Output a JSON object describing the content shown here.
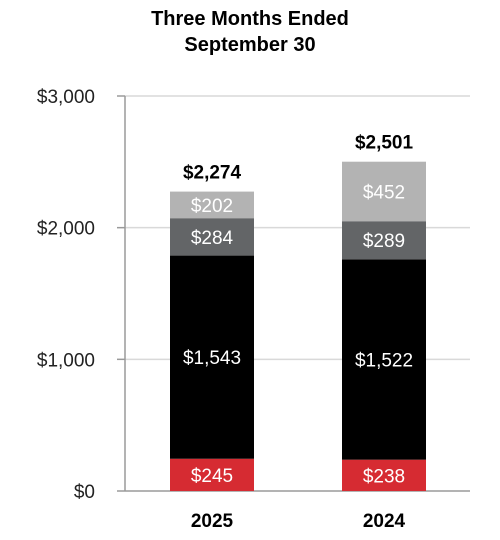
{
  "chart_data": {
    "type": "bar",
    "stacked": true,
    "title_line1": "Three Months Ended",
    "title_line2": "September 30",
    "categories": [
      "2025",
      "2024"
    ],
    "series": [
      {
        "values": [
          245,
          238
        ],
        "labels": [
          "$245",
          "$238"
        ],
        "color": "#d62b32"
      },
      {
        "values": [
          1543,
          1522
        ],
        "labels": [
          "$1,543",
          "$1,522"
        ],
        "color": "#000000"
      },
      {
        "values": [
          284,
          289
        ],
        "labels": [
          "$284",
          "$289"
        ],
        "color": "#636567"
      },
      {
        "values": [
          202,
          452
        ],
        "labels": [
          "$202",
          "$452"
        ],
        "color": "#b3b3b3"
      }
    ],
    "totals": [
      "$2,274",
      "$2,501"
    ],
    "ytick_values": [
      0,
      1000,
      2000,
      3000
    ],
    "ytick_labels": [
      "$0",
      "$1,000",
      "$2,000",
      "$3,000"
    ],
    "ylim": [
      0,
      3000
    ],
    "grid": true,
    "legend": "none"
  }
}
